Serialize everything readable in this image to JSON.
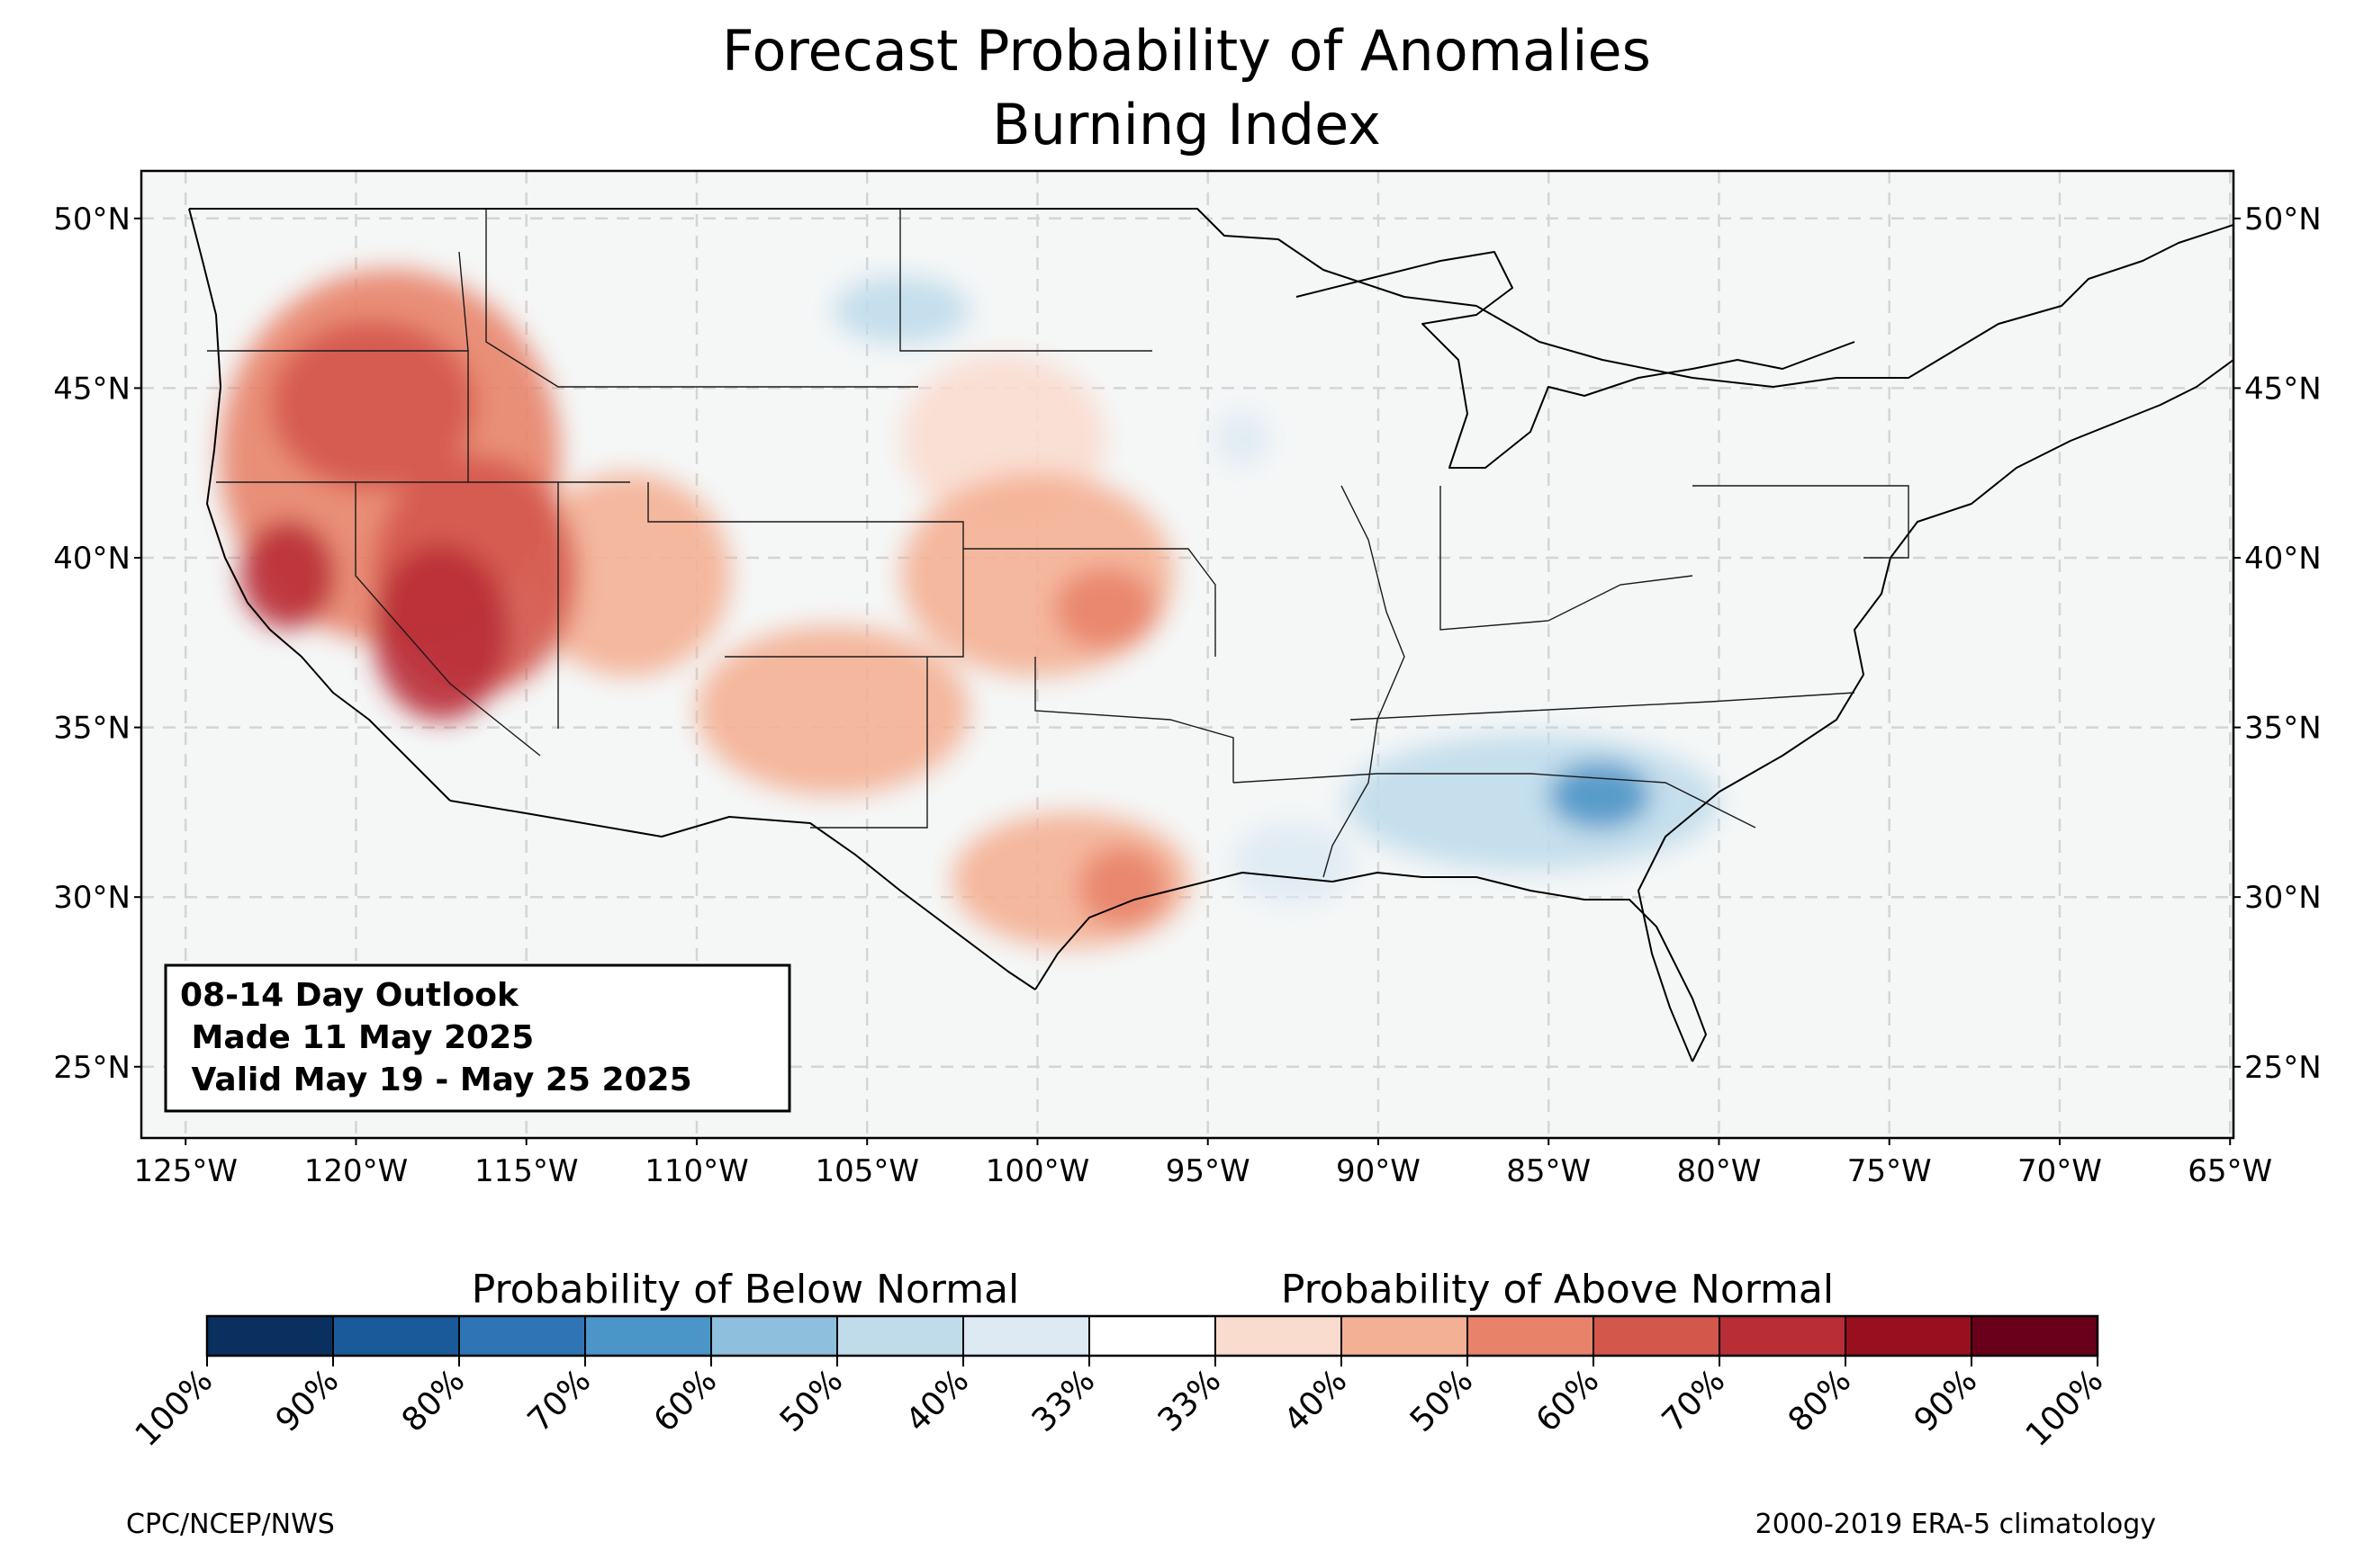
{
  "title": {
    "line1": "Forecast Probability of Anomalies",
    "line2": "Burning Index"
  },
  "map": {
    "lon_range": [
      -126.3,
      -64.9
    ],
    "lat_range": [
      22.9,
      51.4
    ],
    "background_color": "#f5f7f7",
    "gridline_color": "#d4d4d4",
    "lat_ticks": [
      {
        "value": 50,
        "label": "50°N"
      },
      {
        "value": 45,
        "label": "45°N"
      },
      {
        "value": 40,
        "label": "40°N"
      },
      {
        "value": 35,
        "label": "35°N"
      },
      {
        "value": 30,
        "label": "30°N"
      },
      {
        "value": 25,
        "label": "25°N"
      }
    ],
    "lon_ticks": [
      {
        "value": -125,
        "label": "125°W"
      },
      {
        "value": -120,
        "label": "120°W"
      },
      {
        "value": -115,
        "label": "115°W"
      },
      {
        "value": -110,
        "label": "110°W"
      },
      {
        "value": -105,
        "label": "105°W"
      },
      {
        "value": -100,
        "label": "100°W"
      },
      {
        "value": -95,
        "label": "95°W"
      },
      {
        "value": -90,
        "label": "90°W"
      },
      {
        "value": -85,
        "label": "85°W"
      },
      {
        "value": -80,
        "label": "80°W"
      },
      {
        "value": -75,
        "label": "75°W"
      },
      {
        "value": -70,
        "label": "70°W"
      },
      {
        "value": -65,
        "label": "65°W"
      }
    ],
    "outlook_box": {
      "line1": "08-14 Day Outlook",
      "line2": " Made 11 May 2025",
      "line3": " Valid May 19 - May 25 2025"
    },
    "anomaly_regions": [
      {
        "name": "California Great Basin core",
        "category": "above",
        "level": "80%",
        "lon": -117.5,
        "lat": 37.8,
        "rx": 2.0,
        "ry": 2.6
      },
      {
        "name": "Northern California",
        "category": "above",
        "level": "80%",
        "lon": -122.0,
        "lat": 39.5,
        "rx": 1.4,
        "ry": 1.6
      },
      {
        "name": "Nevada",
        "category": "above",
        "level": "70%",
        "lon": -116.5,
        "lat": 39.5,
        "rx": 3.0,
        "ry": 3.5
      },
      {
        "name": "Oregon",
        "category": "above",
        "level": "70%",
        "lon": -119.5,
        "lat": 44.5,
        "rx": 3.0,
        "ry": 2.5
      },
      {
        "name": "Pacific Northwest interior",
        "category": "above",
        "level": "60%",
        "lon": -119.0,
        "lat": 43.0,
        "rx": 5.0,
        "ry": 5.5
      },
      {
        "name": "Idaho Utah",
        "category": "above",
        "level": "50%",
        "lon": -112.0,
        "lat": 39.5,
        "rx": 3.0,
        "ry": 3.0
      },
      {
        "name": "Central Plains",
        "category": "above",
        "level": "50%",
        "lon": -100.0,
        "lat": 39.5,
        "rx": 4.0,
        "ry": 3.0
      },
      {
        "name": "Kansas core",
        "category": "above",
        "level": "60%",
        "lon": -98.0,
        "lat": 38.5,
        "rx": 1.5,
        "ry": 1.2
      },
      {
        "name": "Nebraska",
        "category": "above",
        "level": "40%",
        "lon": -101.0,
        "lat": 43.5,
        "rx": 3.0,
        "ry": 2.5
      },
      {
        "name": "Four Corners",
        "category": "above",
        "level": "50%",
        "lon": -106.0,
        "lat": 35.5,
        "rx": 4.0,
        "ry": 2.5
      },
      {
        "name": "Texas",
        "category": "above",
        "level": "50%",
        "lon": -99.0,
        "lat": 30.5,
        "rx": 3.5,
        "ry": 2.0
      },
      {
        "name": "Central Texas core",
        "category": "above",
        "level": "60%",
        "lon": -97.5,
        "lat": 30.3,
        "rx": 1.3,
        "ry": 1.2
      },
      {
        "name": "Southeast",
        "category": "below",
        "level": "50%",
        "lon": -85.5,
        "lat": 32.8,
        "rx": 5.5,
        "ry": 2.0
      },
      {
        "name": "Georgia core",
        "category": "below",
        "level": "70%",
        "lon": -83.5,
        "lat": 33.0,
        "rx": 1.5,
        "ry": 1.0
      },
      {
        "name": "Louisiana",
        "category": "below",
        "level": "40%",
        "lon": -92.5,
        "lat": 31.0,
        "rx": 1.8,
        "ry": 1.2
      },
      {
        "name": "North Dakota",
        "category": "below",
        "level": "50%",
        "lon": -104.0,
        "lat": 47.3,
        "rx": 2.0,
        "ry": 1.0
      },
      {
        "name": "Minnesota",
        "category": "below",
        "level": "40%",
        "lon": -94.0,
        "lat": 43.5,
        "rx": 0.8,
        "ry": 0.8
      }
    ]
  },
  "colorbar": {
    "below_label": "Probability of Below Normal",
    "above_label": "Probability of Above Normal",
    "tick_labels": [
      "100%",
      "90%",
      "80%",
      "70%",
      "60%",
      "50%",
      "40%",
      "33%",
      "33%",
      "40%",
      "50%",
      "60%",
      "70%",
      "80%",
      "90%",
      "100%"
    ],
    "colors": [
      "#0a305f",
      "#1a5a9a",
      "#2f75b5",
      "#4c95c8",
      "#8ebfdd",
      "#c0dceb",
      "#deeaf3",
      "#ffffff",
      "#fadccf",
      "#f4b094",
      "#e8836a",
      "#d4574c",
      "#b92d37",
      "#98101f",
      "#680019"
    ]
  },
  "credits": {
    "left": "CPC/NCEP/NWS",
    "right": "2000-2019 ERA-5 climatology"
  }
}
